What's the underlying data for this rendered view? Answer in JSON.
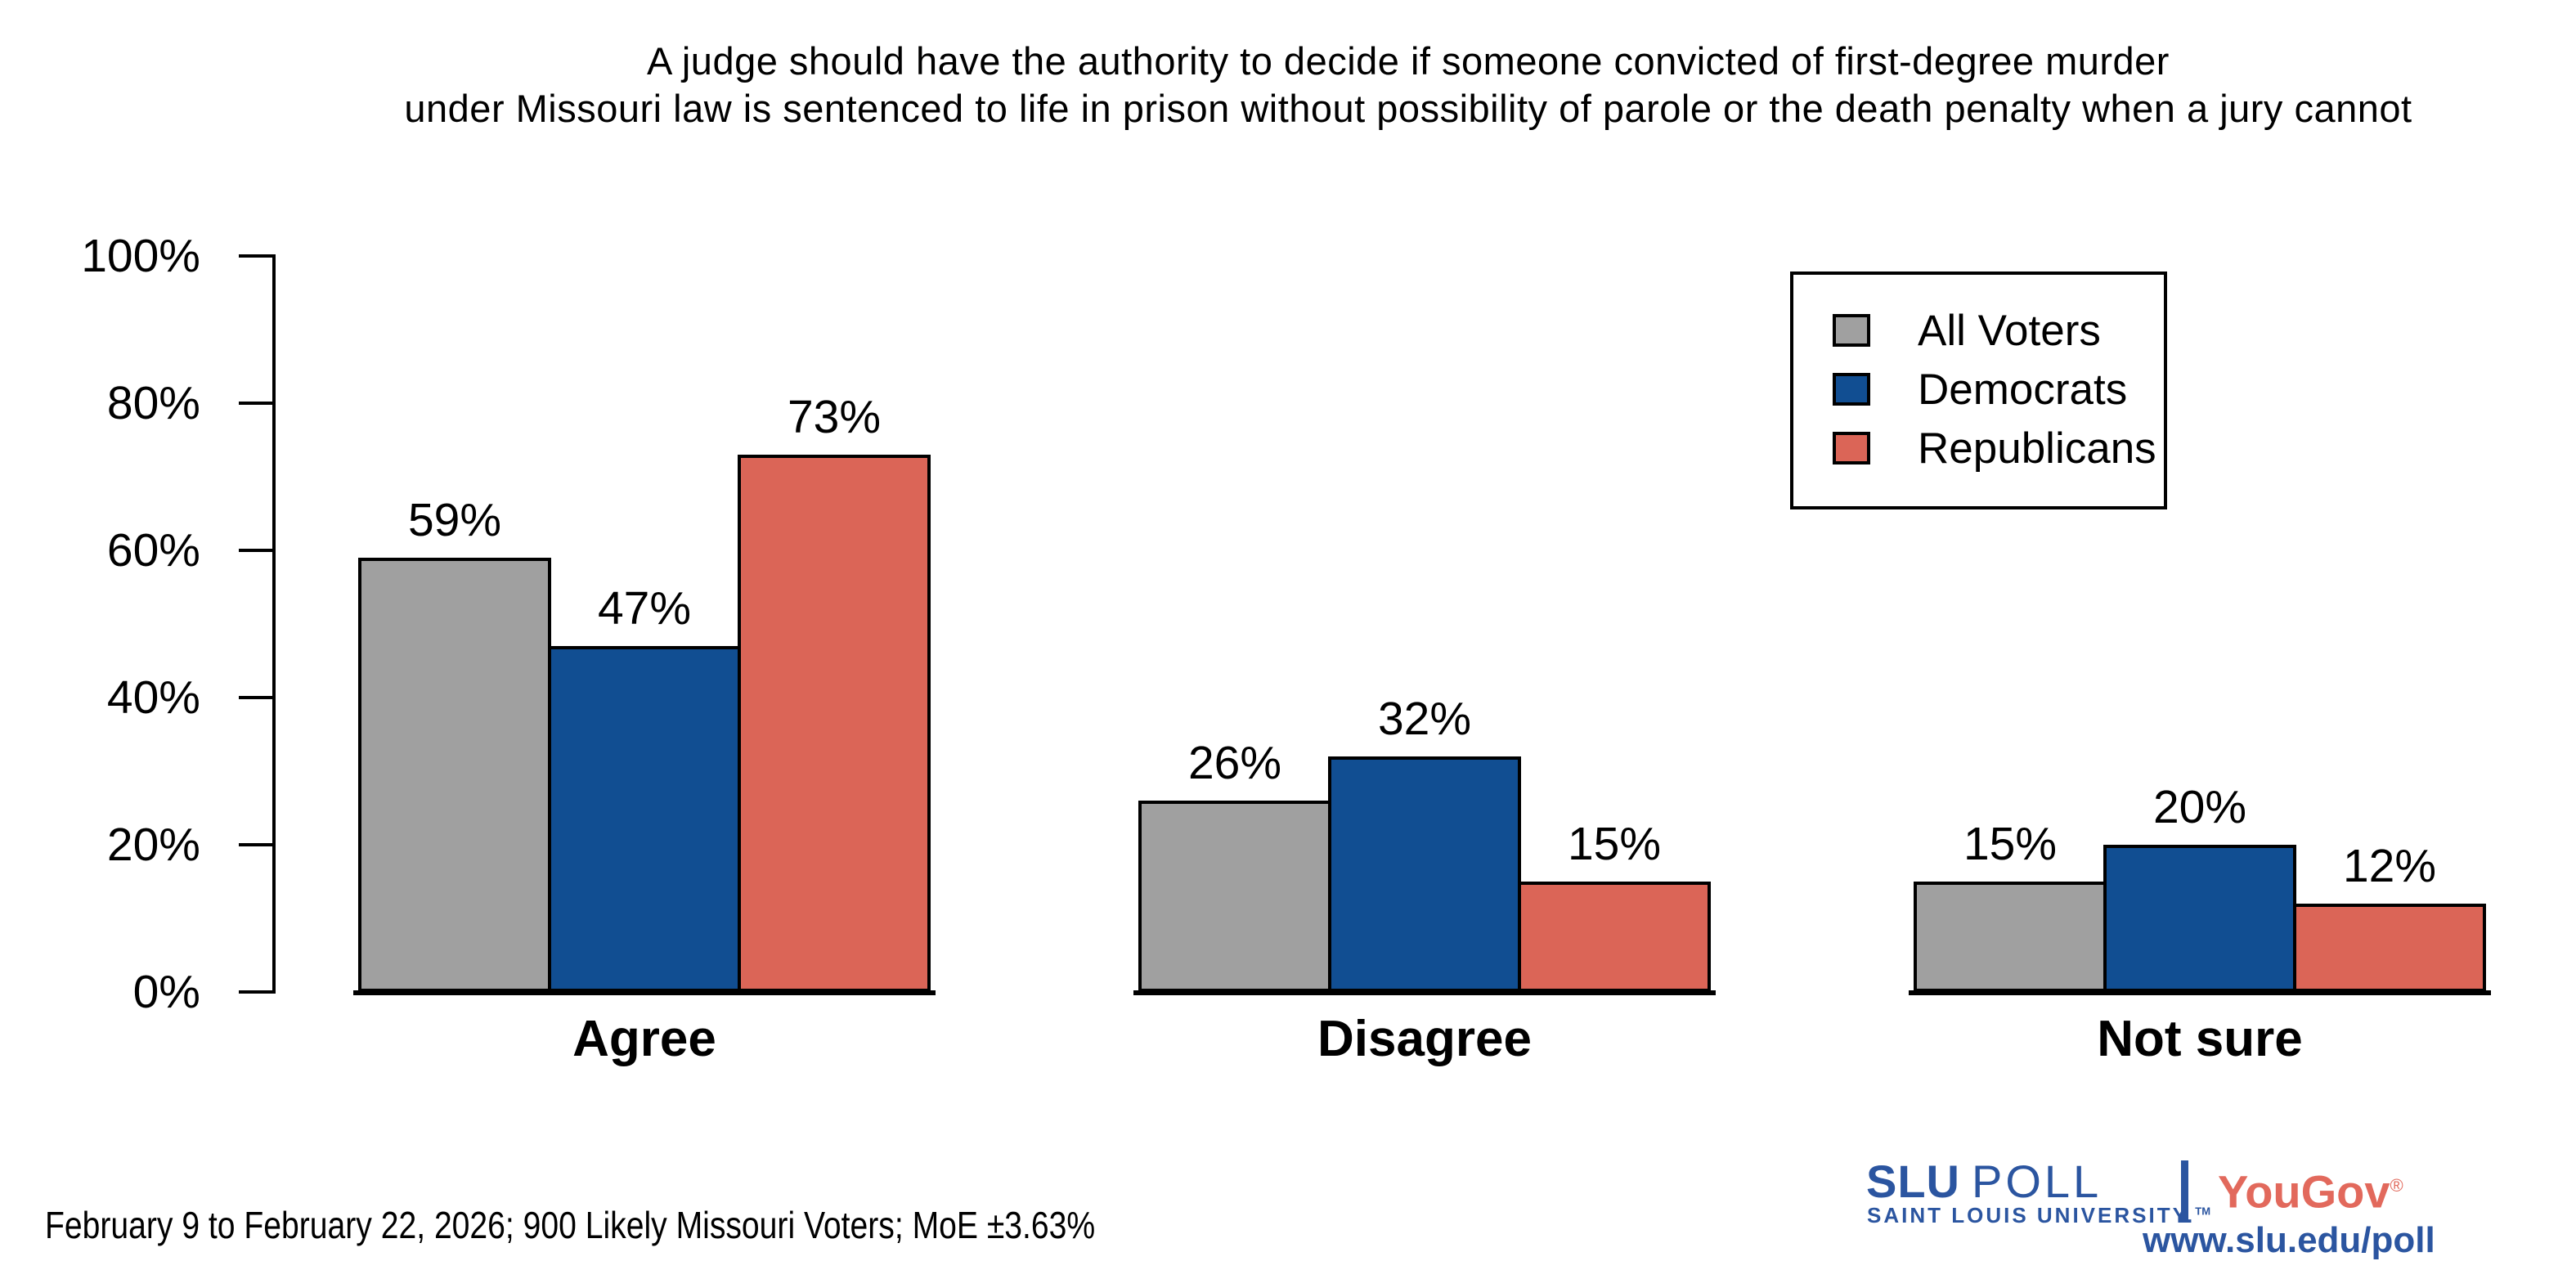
{
  "title": {
    "line1": "A judge should have the authority to decide if someone convicted of first-degree murder",
    "line2": "under Missouri law is sentenced to life in prison without possibility of parole or the death penalty when a jury cannot"
  },
  "chart_data": {
    "type": "bar",
    "categories": [
      "Agree",
      "Disagree",
      "Not sure"
    ],
    "series": [
      {
        "name": "All Voters",
        "color": "#A0A0A0",
        "values": [
          59,
          26,
          15
        ]
      },
      {
        "name": "Democrats",
        "color": "#114E92",
        "values": [
          47,
          32,
          20
        ]
      },
      {
        "name": "Republicans",
        "color": "#DB6557",
        "values": [
          73,
          15,
          12
        ]
      }
    ],
    "value_suffix": "%",
    "ylim": [
      0,
      100
    ],
    "yticks": [
      0,
      20,
      40,
      60,
      80,
      100
    ],
    "ytick_suffix": "%",
    "grid": false,
    "legend_position": "top-right",
    "bar_edge_color": "#000000"
  },
  "footer": {
    "note": "February 9 to February 22, 2026; 900 Likely Missouri Voters; MoE ±3.63%"
  },
  "branding": {
    "slu": "SLU",
    "poll": "POLL",
    "university": "SAINT LOUIS UNIVERSITY.",
    "trademark": "TM",
    "yougov": "YouGov",
    "registered": "®",
    "url": "www.slu.edu/poll",
    "slu_blue": "#2B55A0",
    "yougov_red": "#E2695C"
  }
}
